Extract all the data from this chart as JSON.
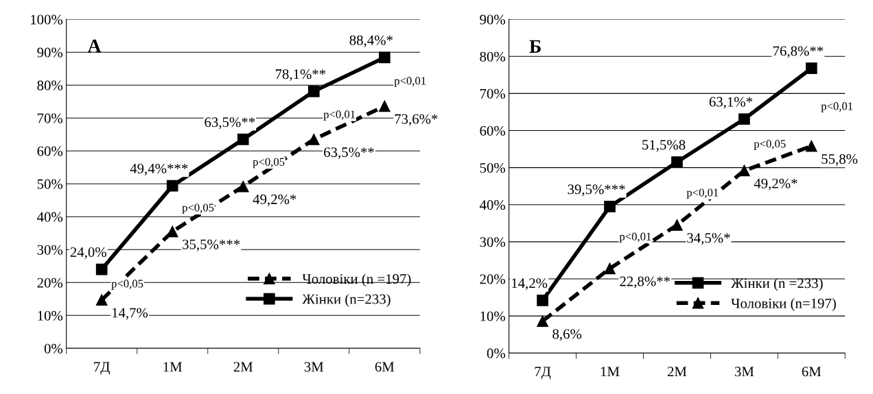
{
  "chart_data": [
    {
      "type": "line",
      "title": "А",
      "categories": [
        "7Д",
        "1М",
        "2М",
        "3М",
        "6М"
      ],
      "series": [
        {
          "name": "Чоловіки (n =197)",
          "color": "#000000",
          "marker": "triangle",
          "line_style": "dashed",
          "values": [
            14.7,
            35.5,
            49.2,
            63.5,
            73.6
          ],
          "value_labels": [
            "14,7%",
            "35,5%***",
            "49,2%*",
            "63,5%**",
            "73,6%*"
          ]
        },
        {
          "name": "Жінки (n=233)",
          "color": "#000000",
          "marker": "square",
          "line_style": "solid",
          "values": [
            24.0,
            49.4,
            63.5,
            78.1,
            88.4
          ],
          "value_labels": [
            "24,0%",
            "49,4%***",
            "63,5%**",
            "78,1%**",
            "88,4%*"
          ]
        }
      ],
      "ylim": [
        0,
        100
      ],
      "yticks": [
        {
          "value": 0,
          "label": "0%"
        },
        {
          "value": 10,
          "label": "10%"
        },
        {
          "value": 20,
          "label": "20%"
        },
        {
          "value": 30,
          "label": "30%"
        },
        {
          "value": 40,
          "label": "40%"
        },
        {
          "value": 50,
          "label": "50%"
        },
        {
          "value": 60,
          "label": "60%"
        },
        {
          "value": 70,
          "label": "70%"
        },
        {
          "value": 80,
          "label": "80%"
        },
        {
          "value": 90,
          "label": "90%"
        },
        {
          "value": 100,
          "label": "100%"
        }
      ],
      "annotations": [
        "p<0,05",
        "p<0,05",
        "p<0,05",
        "p<0,01",
        "p<0,01"
      ],
      "grid": "y",
      "legend": "bottom right"
    },
    {
      "type": "line",
      "title": "Б",
      "categories": [
        "7Д",
        "1М",
        "2М",
        "3М",
        "6М"
      ],
      "series": [
        {
          "name": "Жінки (n =233)",
          "color": "#000000",
          "marker": "square",
          "line_style": "solid",
          "values": [
            14.2,
            39.5,
            51.5,
            63.1,
            76.8
          ],
          "value_labels": [
            "14,2%",
            "39,5%***",
            "51,5%8",
            "63,1%*",
            "76,8%**"
          ]
        },
        {
          "name": "Чоловіки (n=197)",
          "color": "#000000",
          "marker": "triangle",
          "line_style": "dashed",
          "values": [
            8.6,
            22.8,
            34.5,
            49.2,
            55.8
          ],
          "value_labels": [
            "8,6%",
            "22,8%**",
            "34,5%*",
            "49,2%*",
            "55,8%"
          ]
        }
      ],
      "ylim": [
        0,
        90
      ],
      "yticks": [
        {
          "value": 0,
          "label": "0%"
        },
        {
          "value": 10,
          "label": "10%"
        },
        {
          "value": 20,
          "label": "20%"
        },
        {
          "value": 30,
          "label": "30%"
        },
        {
          "value": 40,
          "label": "40%"
        },
        {
          "value": 50,
          "label": "50%"
        },
        {
          "value": 60,
          "label": "60%"
        },
        {
          "value": 70,
          "label": "70%"
        },
        {
          "value": 80,
          "label": "80%"
        },
        {
          "value": 90,
          "label": "90%"
        }
      ],
      "annotations": [
        "p<0,01",
        "p<0,01",
        "p<0,05",
        "p<0,01"
      ],
      "grid": "y",
      "legend": "bottom right"
    }
  ]
}
